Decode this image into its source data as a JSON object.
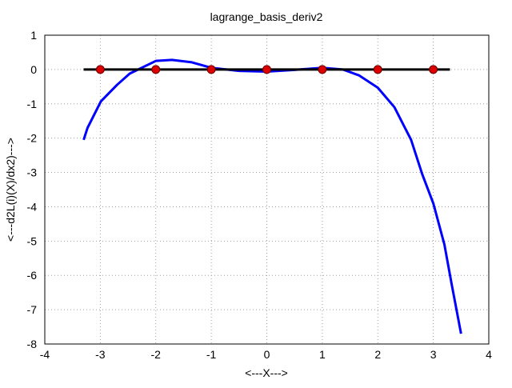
{
  "chart_data": {
    "type": "line",
    "title": "lagrange_basis_deriv2",
    "x_label": "<---X--->",
    "y_label": "<---d2L(i)(X)/dx2)--->",
    "xlim": [
      -4,
      4
    ],
    "xticks": [
      -4,
      -3,
      -2,
      -1,
      0,
      1,
      2,
      3,
      4
    ],
    "ylim": [
      -8,
      1
    ],
    "yticks": [
      -8,
      -7,
      -6,
      -5,
      -4,
      -3,
      -2,
      -1,
      0,
      1
    ],
    "grid": true,
    "series": [
      {
        "color": "#0000ff",
        "mode": "lines",
        "x": [
          -3.3,
          -3.23,
          -2.99,
          -2.7,
          -2.47,
          -2.0,
          -1.71,
          -1.35,
          -1.0,
          -0.5,
          0,
          0.5,
          1.0,
          1.37,
          1.66,
          2.0,
          2.3,
          2.6,
          2.8,
          3.0,
          3.2,
          3.33,
          3.5
        ],
        "values": [
          -2.05,
          -1.7,
          -0.93,
          -0.45,
          -0.12,
          0.25,
          0.28,
          0.21,
          0.05,
          -0.04,
          -0.06,
          -0.01,
          0.05,
          0,
          -0.17,
          -0.53,
          -1.1,
          -2.05,
          -3.05,
          -3.9,
          -5.1,
          -6.25,
          -7.7
        ]
      },
      {
        "color": "#000000",
        "mode": "lines",
        "x": [
          -3.3,
          3.3
        ],
        "values": [
          0,
          0
        ]
      },
      {
        "color": "#dd0000",
        "mode": "points",
        "x": [
          -3,
          -2,
          -1,
          0,
          1,
          2,
          3
        ],
        "values": [
          0,
          0,
          0,
          0,
          0,
          0,
          0
        ]
      }
    ]
  }
}
